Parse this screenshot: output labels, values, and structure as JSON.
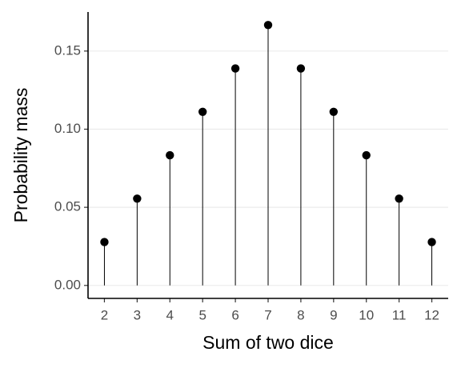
{
  "chart_data": {
    "type": "lollipop",
    "x_label": "Sum of two dice",
    "y_label": "Probability mass",
    "x": [
      2,
      3,
      4,
      5,
      6,
      7,
      8,
      9,
      10,
      11,
      12
    ],
    "values": [
      0.02778,
      0.05556,
      0.08333,
      0.11111,
      0.13889,
      0.16667,
      0.13889,
      0.11111,
      0.08333,
      0.05556,
      0.02778
    ],
    "color": "#000000",
    "xlim": [
      1.5,
      12.5
    ],
    "xticks": [
      2,
      3,
      4,
      5,
      6,
      7,
      8,
      9,
      10,
      11,
      12
    ],
    "ylim": [
      -0.0083,
      0.175
    ],
    "yticks": [
      {
        "value": 0,
        "label": "0.00"
      },
      {
        "value": 0.05,
        "label": "0.05"
      },
      {
        "value": 0.1,
        "label": "0.10"
      },
      {
        "value": 0.15,
        "label": "0.15"
      }
    ],
    "grid": true
  }
}
